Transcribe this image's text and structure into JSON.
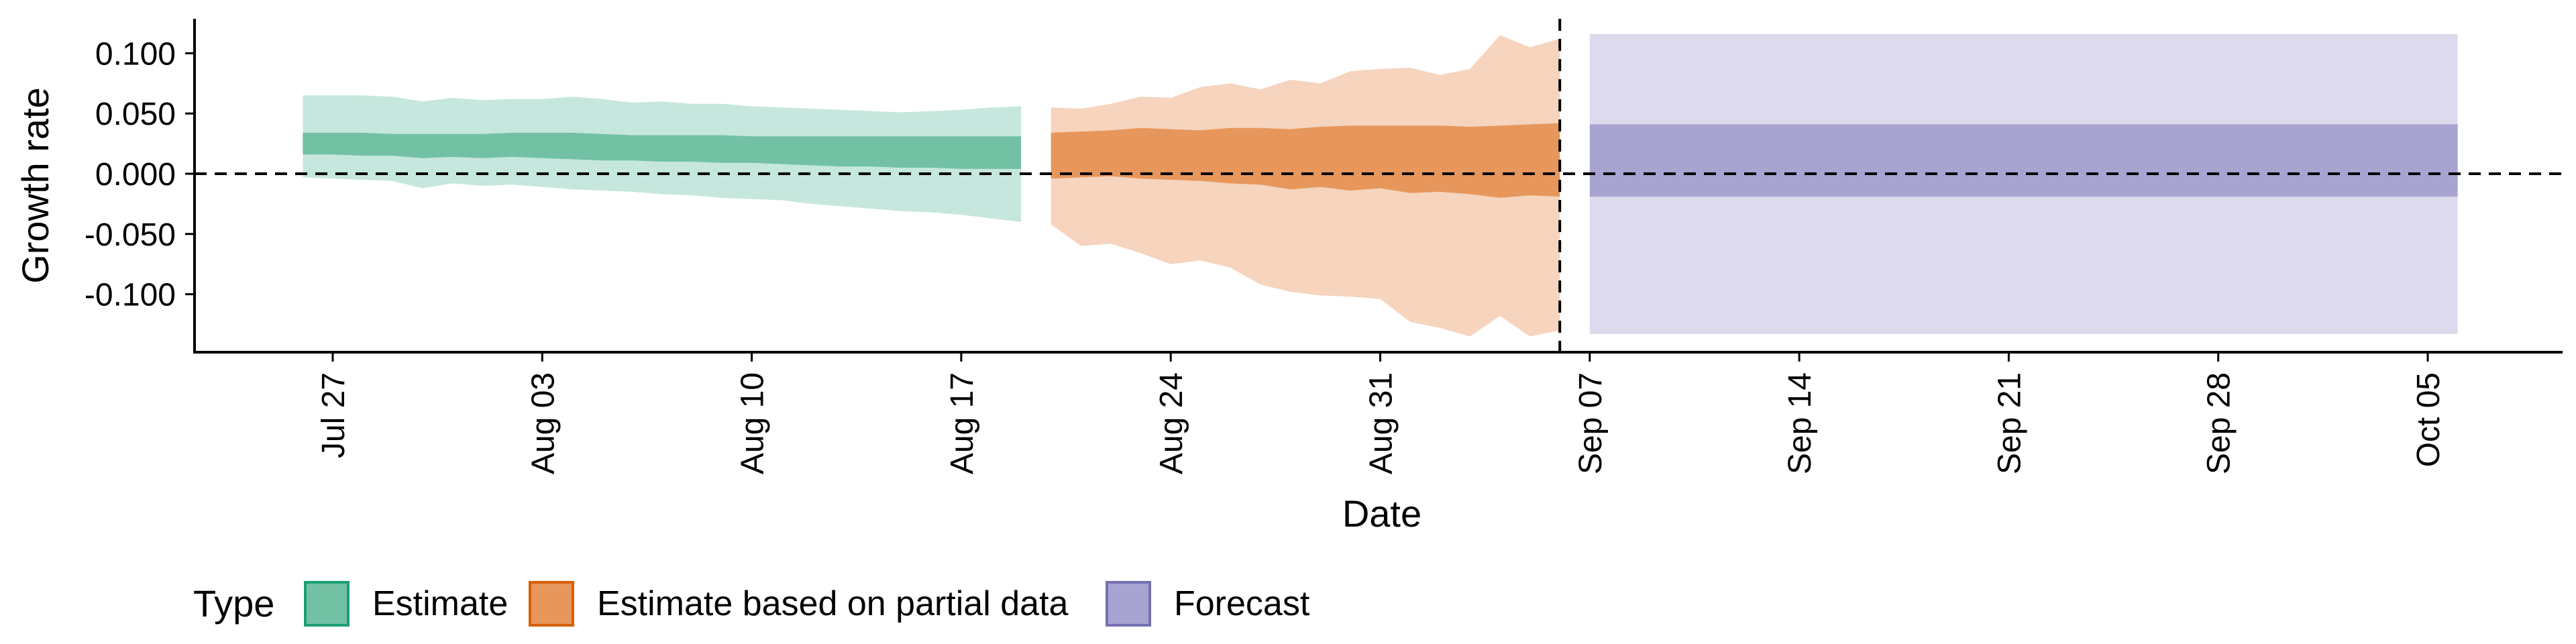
{
  "chart_data": {
    "type": "area",
    "xlabel": "Date",
    "ylabel": "Growth rate",
    "x_type": "date",
    "xlim": [
      "2020-07-21",
      "2020-10-12"
    ],
    "ylim": [
      -0.15,
      0.13
    ],
    "x_ticks": [
      {
        "date": "2020-07-27",
        "label": "Jul 27"
      },
      {
        "date": "2020-08-03",
        "label": "Aug 03"
      },
      {
        "date": "2020-08-10",
        "label": "Aug 10"
      },
      {
        "date": "2020-08-17",
        "label": "Aug 17"
      },
      {
        "date": "2020-08-24",
        "label": "Aug 24"
      },
      {
        "date": "2020-08-31",
        "label": "Aug 31"
      },
      {
        "date": "2020-09-07",
        "label": "Sep 07"
      },
      {
        "date": "2020-09-14",
        "label": "Sep 14"
      },
      {
        "date": "2020-09-21",
        "label": "Sep 21"
      },
      {
        "date": "2020-09-28",
        "label": "Sep 28"
      },
      {
        "date": "2020-10-05",
        "label": "Oct 05"
      }
    ],
    "y_ticks": [
      {
        "value": 0.1,
        "label": "0.100"
      },
      {
        "value": 0.05,
        "label": "0.050"
      },
      {
        "value": 0.0,
        "label": "0.000"
      },
      {
        "value": -0.05,
        "label": "-0.050"
      },
      {
        "value": -0.1,
        "label": "-0.100"
      }
    ],
    "reference_lines": {
      "horizontal_y": 0.0,
      "vertical_date": "2020-09-06"
    },
    "legend": {
      "title": "Type",
      "position": "bottom-left"
    },
    "series": [
      {
        "name": "Estimate",
        "color": "#1b9e77",
        "outer_color": "#c6e7dd",
        "inner_color": "#72c1a5",
        "points": [
          {
            "date": "2020-07-26",
            "lo90": -0.003,
            "hi90": 0.065,
            "lo50": 0.016,
            "hi50": 0.034
          },
          {
            "date": "2020-07-27",
            "lo90": -0.004,
            "hi90": 0.065,
            "lo50": 0.016,
            "hi50": 0.034
          },
          {
            "date": "2020-07-28",
            "lo90": -0.005,
            "hi90": 0.065,
            "lo50": 0.015,
            "hi50": 0.034
          },
          {
            "date": "2020-07-29",
            "lo90": -0.006,
            "hi90": 0.064,
            "lo50": 0.015,
            "hi50": 0.033
          },
          {
            "date": "2020-07-30",
            "lo90": -0.012,
            "hi90": 0.06,
            "lo50": 0.013,
            "hi50": 0.033
          },
          {
            "date": "2020-07-31",
            "lo90": -0.008,
            "hi90": 0.063,
            "lo50": 0.014,
            "hi50": 0.033
          },
          {
            "date": "2020-08-01",
            "lo90": -0.01,
            "hi90": 0.061,
            "lo50": 0.013,
            "hi50": 0.033
          },
          {
            "date": "2020-08-02",
            "lo90": -0.009,
            "hi90": 0.062,
            "lo50": 0.014,
            "hi50": 0.034
          },
          {
            "date": "2020-08-03",
            "lo90": -0.011,
            "hi90": 0.062,
            "lo50": 0.013,
            "hi50": 0.034
          },
          {
            "date": "2020-08-04",
            "lo90": -0.013,
            "hi90": 0.064,
            "lo50": 0.012,
            "hi50": 0.034
          },
          {
            "date": "2020-08-05",
            "lo90": -0.014,
            "hi90": 0.062,
            "lo50": 0.011,
            "hi50": 0.033
          },
          {
            "date": "2020-08-06",
            "lo90": -0.015,
            "hi90": 0.059,
            "lo50": 0.011,
            "hi50": 0.032
          },
          {
            "date": "2020-08-07",
            "lo90": -0.017,
            "hi90": 0.06,
            "lo50": 0.01,
            "hi50": 0.032
          },
          {
            "date": "2020-08-08",
            "lo90": -0.018,
            "hi90": 0.058,
            "lo50": 0.01,
            "hi50": 0.032
          },
          {
            "date": "2020-08-09",
            "lo90": -0.02,
            "hi90": 0.058,
            "lo50": 0.009,
            "hi50": 0.032
          },
          {
            "date": "2020-08-10",
            "lo90": -0.021,
            "hi90": 0.056,
            "lo50": 0.009,
            "hi50": 0.031
          },
          {
            "date": "2020-08-11",
            "lo90": -0.022,
            "hi90": 0.055,
            "lo50": 0.008,
            "hi50": 0.031
          },
          {
            "date": "2020-08-12",
            "lo90": -0.025,
            "hi90": 0.054,
            "lo50": 0.007,
            "hi50": 0.031
          },
          {
            "date": "2020-08-13",
            "lo90": -0.027,
            "hi90": 0.053,
            "lo50": 0.006,
            "hi50": 0.031
          },
          {
            "date": "2020-08-14",
            "lo90": -0.029,
            "hi90": 0.052,
            "lo50": 0.006,
            "hi50": 0.031
          },
          {
            "date": "2020-08-15",
            "lo90": -0.031,
            "hi90": 0.051,
            "lo50": 0.005,
            "hi50": 0.031
          },
          {
            "date": "2020-08-16",
            "lo90": -0.032,
            "hi90": 0.052,
            "lo50": 0.005,
            "hi50": 0.031
          },
          {
            "date": "2020-08-17",
            "lo90": -0.034,
            "hi90": 0.053,
            "lo50": 0.004,
            "hi50": 0.031
          },
          {
            "date": "2020-08-18",
            "lo90": -0.037,
            "hi90": 0.055,
            "lo50": 0.004,
            "hi50": 0.031
          },
          {
            "date": "2020-08-19",
            "lo90": -0.04,
            "hi90": 0.056,
            "lo50": 0.004,
            "hi50": 0.031
          }
        ]
      },
      {
        "name": "Estimate based on partial data",
        "color": "#d95f02",
        "outer_color": "#f6d4bd",
        "inner_color": "#e7975c",
        "points": [
          {
            "date": "2020-08-20",
            "lo90": -0.042,
            "hi90": 0.055,
            "lo50": -0.004,
            "hi50": 0.034
          },
          {
            "date": "2020-08-21",
            "lo90": -0.06,
            "hi90": 0.054,
            "lo50": -0.003,
            "hi50": 0.035
          },
          {
            "date": "2020-08-22",
            "lo90": -0.058,
            "hi90": 0.058,
            "lo50": -0.002,
            "hi50": 0.036
          },
          {
            "date": "2020-08-23",
            "lo90": -0.066,
            "hi90": 0.064,
            "lo50": -0.004,
            "hi50": 0.038
          },
          {
            "date": "2020-08-24",
            "lo90": -0.075,
            "hi90": 0.063,
            "lo50": -0.005,
            "hi50": 0.037
          },
          {
            "date": "2020-08-25",
            "lo90": -0.072,
            "hi90": 0.072,
            "lo50": -0.006,
            "hi50": 0.036
          },
          {
            "date": "2020-08-26",
            "lo90": -0.078,
            "hi90": 0.075,
            "lo50": -0.008,
            "hi50": 0.038
          },
          {
            "date": "2020-08-27",
            "lo90": -0.092,
            "hi90": 0.07,
            "lo50": -0.009,
            "hi50": 0.038
          },
          {
            "date": "2020-08-28",
            "lo90": -0.098,
            "hi90": 0.078,
            "lo50": -0.013,
            "hi50": 0.037
          },
          {
            "date": "2020-08-29",
            "lo90": -0.101,
            "hi90": 0.075,
            "lo50": -0.011,
            "hi50": 0.039
          },
          {
            "date": "2020-08-30",
            "lo90": -0.102,
            "hi90": 0.085,
            "lo50": -0.014,
            "hi50": 0.04
          },
          {
            "date": "2020-08-31",
            "lo90": -0.104,
            "hi90": 0.087,
            "lo50": -0.012,
            "hi50": 0.04
          },
          {
            "date": "2020-09-01",
            "lo90": -0.123,
            "hi90": 0.088,
            "lo50": -0.016,
            "hi50": 0.04
          },
          {
            "date": "2020-09-02",
            "lo90": -0.128,
            "hi90": 0.082,
            "lo50": -0.015,
            "hi50": 0.04
          },
          {
            "date": "2020-09-03",
            "lo90": -0.135,
            "hi90": 0.087,
            "lo50": -0.017,
            "hi50": 0.039
          },
          {
            "date": "2020-09-04",
            "lo90": -0.118,
            "hi90": 0.115,
            "lo50": -0.02,
            "hi50": 0.04
          },
          {
            "date": "2020-09-05",
            "lo90": -0.135,
            "hi90": 0.105,
            "lo50": -0.018,
            "hi50": 0.041
          },
          {
            "date": "2020-09-06",
            "lo90": -0.13,
            "hi90": 0.112,
            "lo50": -0.019,
            "hi50": 0.042
          }
        ]
      },
      {
        "name": "Forecast",
        "color": "#7570b3",
        "outer_color": "#dcdaec",
        "inner_color": "#a8a4d2",
        "points": [
          {
            "date": "2020-09-07",
            "lo90": -0.133,
            "hi90": 0.116,
            "lo50": -0.019,
            "hi50": 0.041
          },
          {
            "date": "2020-10-06",
            "lo90": -0.133,
            "hi90": 0.116,
            "lo50": -0.019,
            "hi50": 0.041
          }
        ]
      }
    ]
  }
}
